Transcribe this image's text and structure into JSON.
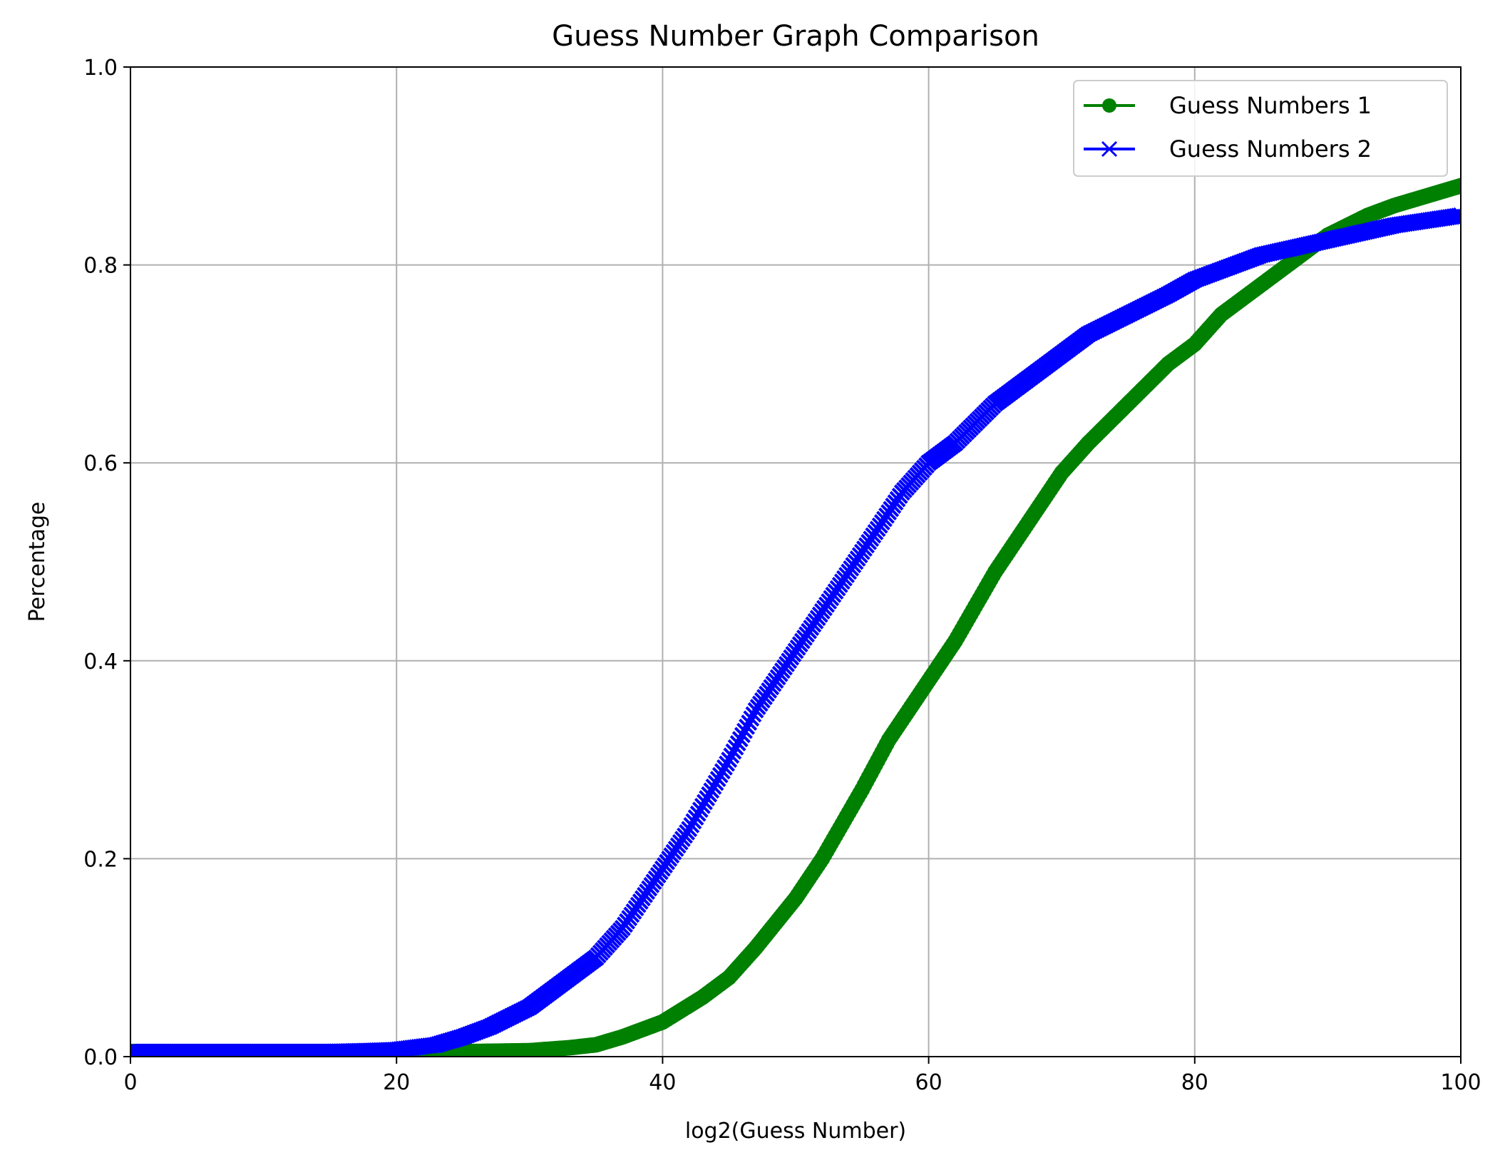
{
  "chart_data": {
    "type": "line",
    "title": "Guess Number Graph Comparison",
    "xlabel": "log2(Guess Number)",
    "ylabel": "Percentage",
    "xlim": [
      0,
      100
    ],
    "ylim": [
      0.0,
      1.0
    ],
    "xticks": [
      "0",
      "20",
      "40",
      "60",
      "80",
      "100"
    ],
    "yticks": [
      "0.0",
      "0.2",
      "0.4",
      "0.6",
      "0.8",
      "1.0"
    ],
    "grid": true,
    "legend_position": "top-right",
    "series": [
      {
        "name": "Guess Numbers 1",
        "color": "#008000",
        "marker": "circle",
        "x": [
          0,
          10,
          20,
          25,
          30,
          33,
          35,
          37,
          40,
          43,
          45,
          47,
          50,
          52,
          55,
          57,
          58,
          60,
          62,
          65,
          68,
          70,
          72,
          75,
          78,
          80,
          82,
          85,
          88,
          90,
          93,
          95,
          100
        ],
        "y": [
          0.005,
          0.005,
          0.005,
          0.005,
          0.006,
          0.009,
          0.012,
          0.02,
          0.035,
          0.06,
          0.08,
          0.11,
          0.16,
          0.2,
          0.27,
          0.32,
          0.34,
          0.38,
          0.42,
          0.49,
          0.55,
          0.59,
          0.62,
          0.66,
          0.7,
          0.72,
          0.75,
          0.78,
          0.81,
          0.83,
          0.85,
          0.86,
          0.88
        ]
      },
      {
        "name": "Guess Numbers 2",
        "color": "#0000ff",
        "marker": "x",
        "x": [
          0,
          10,
          15,
          18,
          20,
          23,
          25,
          27,
          30,
          33,
          35,
          37,
          40,
          42,
          45,
          47,
          50,
          52,
          55,
          57,
          58,
          60,
          62,
          65,
          68,
          70,
          72,
          75,
          78,
          80,
          85,
          90,
          95,
          100
        ],
        "y": [
          0.005,
          0.005,
          0.005,
          0.006,
          0.007,
          0.012,
          0.02,
          0.03,
          0.05,
          0.08,
          0.1,
          0.13,
          0.19,
          0.23,
          0.3,
          0.35,
          0.41,
          0.45,
          0.51,
          0.55,
          0.57,
          0.6,
          0.62,
          0.66,
          0.69,
          0.71,
          0.73,
          0.75,
          0.77,
          0.785,
          0.81,
          0.825,
          0.84,
          0.85
        ]
      }
    ]
  }
}
